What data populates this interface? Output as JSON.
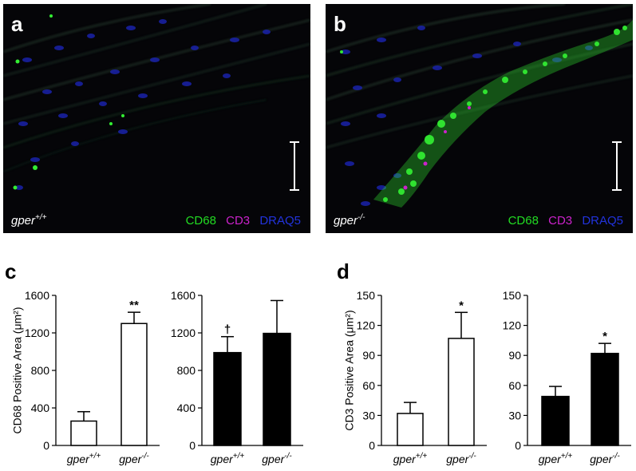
{
  "panels": {
    "a": {
      "letter": "a",
      "genotype_base": "gper",
      "genotype_sup": "+/+",
      "legend": [
        "CD68",
        "CD3",
        "DRAQ5"
      ]
    },
    "b": {
      "letter": "b",
      "genotype_base": "gper",
      "genotype_sup": "-/-",
      "legend": [
        "CD68",
        "CD3",
        "DRAQ5"
      ]
    },
    "c": {
      "letter": "c"
    },
    "d": {
      "letter": "d"
    }
  },
  "colors": {
    "cd68": "#22dd22",
    "cd3": "#cc22cc",
    "draq5": "#2233dd",
    "bar_open": "#ffffff",
    "bar_filled": "#000000"
  },
  "chart_data": [
    {
      "type": "bar",
      "panel": "c",
      "ylabel": "CD68 Positive Area (μm²)",
      "ylim": [
        0,
        1600
      ],
      "yticks": [
        0,
        400,
        800,
        1200,
        1600
      ],
      "categories": [
        "gper+/+",
        "gper-/-"
      ],
      "values": [
        260,
        1300
      ],
      "errors": [
        100,
        120
      ],
      "fill": "open",
      "annotations": [
        "",
        "**"
      ]
    },
    {
      "type": "bar",
      "panel": "c",
      "ylabel": "",
      "ylim": [
        0,
        1600
      ],
      "yticks": [
        0,
        400,
        800,
        1200,
        1600
      ],
      "categories": [
        "gper+/+",
        "gper-/-"
      ],
      "values": [
        990,
        1195
      ],
      "errors": [
        170,
        350
      ],
      "fill": "filled",
      "annotations": [
        "†",
        ""
      ]
    },
    {
      "type": "bar",
      "panel": "d",
      "ylabel": "CD3 Positive Area (μm²)",
      "ylim": [
        0,
        150
      ],
      "yticks": [
        0,
        30,
        60,
        90,
        120,
        150
      ],
      "categories": [
        "gper+/+",
        "gper-/-"
      ],
      "values": [
        32,
        107
      ],
      "errors": [
        11,
        26
      ],
      "fill": "open",
      "annotations": [
        "",
        "*"
      ]
    },
    {
      "type": "bar",
      "panel": "d",
      "ylabel": "",
      "ylim": [
        0,
        150
      ],
      "yticks": [
        0,
        30,
        60,
        90,
        120,
        150
      ],
      "categories": [
        "gper+/+",
        "gper-/-"
      ],
      "values": [
        49,
        92
      ],
      "errors": [
        10,
        10
      ],
      "fill": "filled",
      "annotations": [
        "",
        "*"
      ]
    }
  ]
}
